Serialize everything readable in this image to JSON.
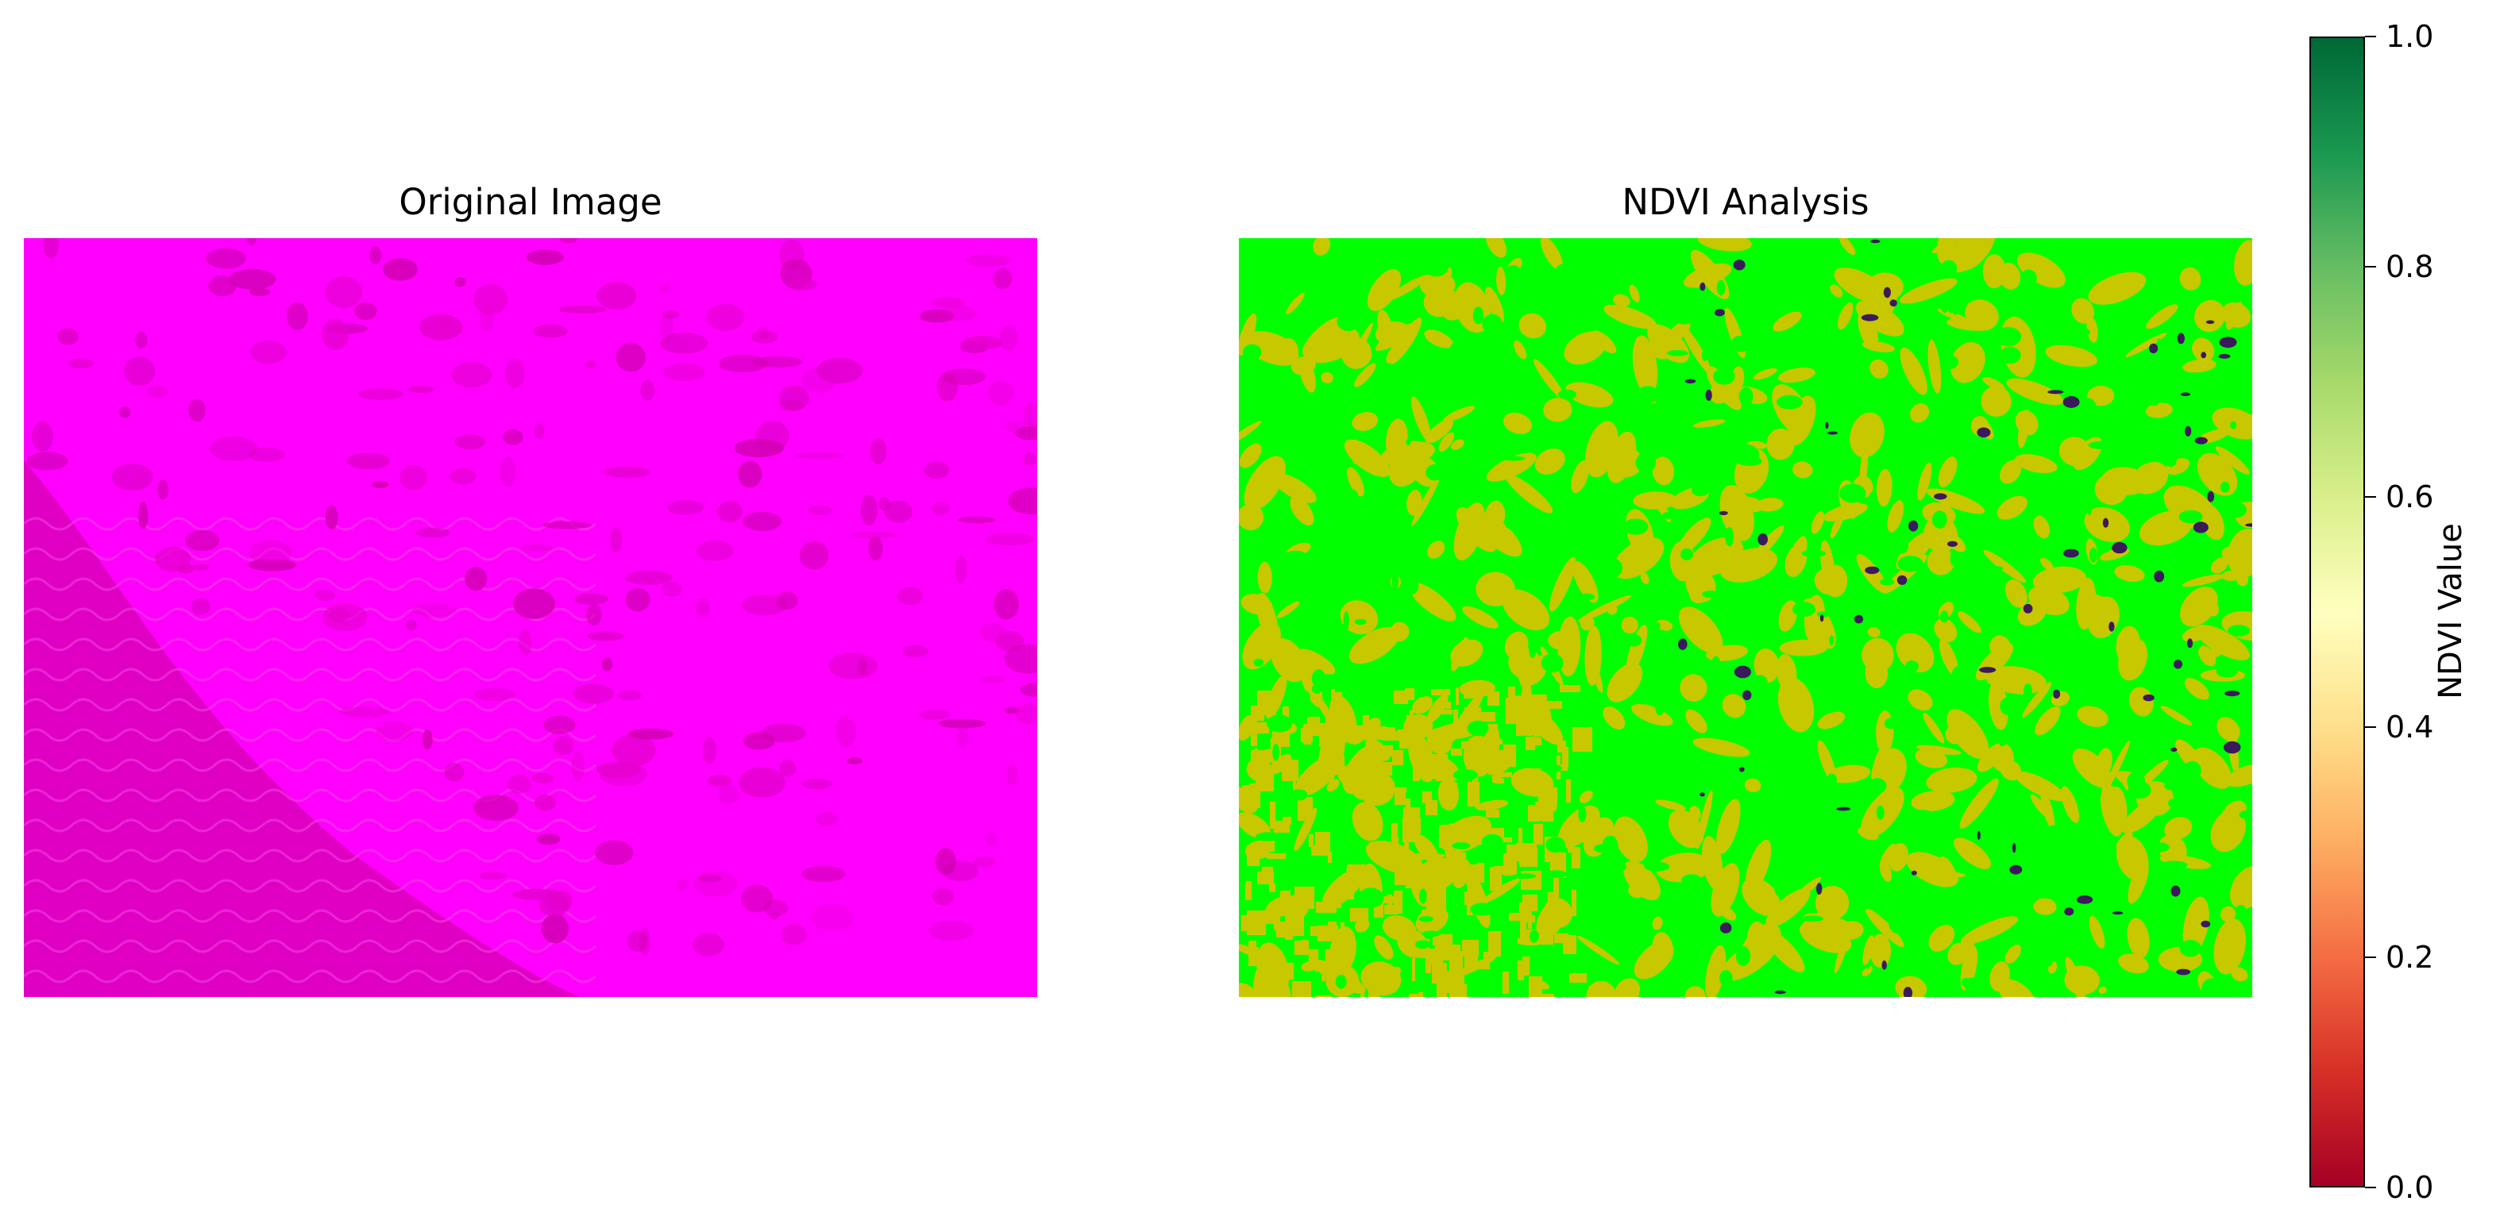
{
  "panels": [
    {
      "title": "Original Image",
      "kind": "image",
      "description_colors": {
        "base": "#ff00ff",
        "dark": "#d800b8"
      }
    },
    {
      "title": "NDVI Analysis",
      "kind": "classified-map",
      "classes": [
        {
          "color": "#00ff00"
        },
        {
          "color": "#c8c800"
        },
        {
          "color": "#3a1a5a"
        }
      ]
    }
  ],
  "colorbar": {
    "label": "NDVI Value",
    "ticks": [
      "0.0",
      "0.2",
      "0.4",
      "0.6",
      "0.8",
      "1.0"
    ],
    "tick_values": [
      0.0,
      0.2,
      0.4,
      0.6,
      0.8,
      1.0
    ],
    "range": [
      0.0,
      1.0
    ],
    "colormap": "RdYlGn",
    "stops": [
      "#a50026",
      "#d73027",
      "#f46d43",
      "#fdae61",
      "#fee08b",
      "#ffffbf",
      "#d9ef8b",
      "#a6d96a",
      "#66bd63",
      "#1a9850",
      "#006837"
    ]
  },
  "chart_data": {
    "type": "heatmap",
    "title": "NDVI Analysis",
    "colorbar_label": "NDVI Value",
    "zlim": [
      0.0,
      1.0
    ],
    "colorbar_ticks": [
      0.0,
      0.2,
      0.4,
      0.6,
      0.8,
      1.0
    ],
    "colormap": "RdYlGn"
  }
}
